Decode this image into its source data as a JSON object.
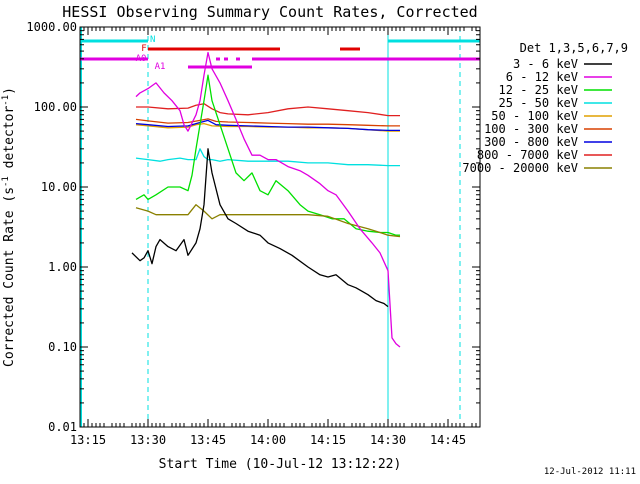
{
  "chart_data": {
    "type": "line",
    "title": "HESSI Observing Summary Count Rates, Corrected",
    "xlabel": "Start Time (10-Jul-12 13:12:22)",
    "ylabel": "Corrected Count Rate (s⁻¹ detector⁻¹)",
    "ylabel_main": "Corrected Count Rate (s",
    "ylabel_sup1": "-1",
    "ylabel_mid": " detector",
    "ylabel_sup2": "-1",
    "ylabel_end": ")",
    "yscale": "log",
    "ylim": [
      0.01,
      1000
    ],
    "xlim": [
      "13:12:22",
      "14:53:00"
    ],
    "xlim_min": [
      793,
      893
    ],
    "x_ticks": [
      "13:15",
      "13:30",
      "13:45",
      "14:00",
      "14:15",
      "14:30",
      "14:45"
    ],
    "x_tick_min": [
      795,
      810,
      825,
      840,
      855,
      870,
      885
    ],
    "y_ticks": [
      "0.01",
      "0.10",
      "1.00",
      "10.00",
      "100.00",
      "1000.00"
    ],
    "y_tick_vals": [
      0.01,
      0.1,
      1,
      10,
      100,
      1000
    ],
    "grid": false,
    "legend_position": "right",
    "legend_title": "Det 1,3,5,6,7,9",
    "footer_date": "12-Jul-2012 11:11",
    "flag_labels": [
      "N",
      "F",
      "A0",
      "A1"
    ],
    "series": [
      {
        "name": "3 - 6 keV",
        "color": "#000000",
        "x": [
          806,
          808,
          809,
          810,
          811,
          812,
          813,
          815,
          817,
          819,
          820,
          822,
          823,
          824,
          825,
          826,
          828,
          830,
          832,
          835,
          838,
          840,
          843,
          846,
          850,
          853,
          855,
          857,
          860,
          862,
          865,
          867,
          869,
          870
        ],
        "y": [
          1.5,
          1.2,
          1.3,
          1.6,
          1.1,
          1.8,
          2.2,
          1.8,
          1.6,
          2.2,
          1.4,
          2.0,
          3.0,
          6.0,
          30,
          15,
          6,
          4,
          3.5,
          2.8,
          2.5,
          2.0,
          1.7,
          1.4,
          1.0,
          0.8,
          0.75,
          0.8,
          0.6,
          0.55,
          0.45,
          0.38,
          0.35,
          0.32
        ]
      },
      {
        "name": "6 - 12 keV",
        "color": "#e000e0",
        "x": [
          807,
          808,
          810,
          812,
          814,
          816,
          818,
          819,
          820,
          822,
          823,
          824,
          825,
          826,
          828,
          830,
          832,
          834,
          836,
          838,
          840,
          842,
          845,
          848,
          850,
          853,
          855,
          857,
          860,
          863,
          866,
          868,
          870,
          871,
          872,
          873
        ],
        "y": [
          135,
          150,
          170,
          200,
          150,
          120,
          90,
          60,
          50,
          80,
          120,
          250,
          480,
          300,
          200,
          120,
          70,
          40,
          25,
          25,
          22,
          22,
          18,
          16,
          14,
          11,
          9,
          8,
          5,
          3,
          2,
          1.5,
          0.9,
          0.13,
          0.11,
          0.1
        ]
      },
      {
        "name": "12 - 25 keV",
        "color": "#00e000",
        "x": [
          807,
          809,
          810,
          812,
          815,
          818,
          820,
          821,
          822,
          823,
          824,
          825,
          826,
          828,
          830,
          832,
          834,
          836,
          838,
          840,
          842,
          845,
          848,
          850,
          853,
          856,
          859,
          862,
          865,
          868,
          870,
          872,
          873
        ],
        "y": [
          7,
          8,
          7,
          8,
          10,
          10,
          9,
          14,
          30,
          60,
          120,
          250,
          120,
          60,
          30,
          15,
          12,
          15,
          9,
          8,
          12,
          9,
          6,
          5,
          4.5,
          4,
          4,
          3,
          2.8,
          2.7,
          2.7,
          2.5,
          2.5
        ]
      },
      {
        "name": "25 - 50 keV",
        "color": "#00e0e0",
        "x": [
          807,
          810,
          813,
          815,
          818,
          820,
          822,
          823,
          824,
          825,
          826,
          828,
          830,
          835,
          840,
          845,
          850,
          855,
          860,
          865,
          870,
          873
        ],
        "y": [
          23,
          22,
          21,
          22,
          23,
          22,
          22,
          30,
          24,
          22,
          22,
          21,
          22,
          21,
          21,
          21,
          20,
          20,
          19,
          19,
          18.5,
          18.5
        ]
      },
      {
        "name": "50 - 100 keV",
        "color": "#e0a000",
        "x": [
          807,
          810,
          815,
          820,
          822,
          824,
          826,
          830,
          835,
          840,
          845,
          850,
          855,
          860,
          865,
          870,
          873
        ],
        "y": [
          60,
          58,
          55,
          56,
          60,
          62,
          58,
          57,
          57,
          56,
          56,
          55,
          55,
          54,
          52,
          50,
          50
        ]
      },
      {
        "name": "100 - 300 keV",
        "color": "#d84000",
        "x": [
          807,
          810,
          815,
          820,
          823,
          825,
          827,
          830,
          835,
          840,
          845,
          850,
          855,
          860,
          865,
          870,
          873
        ],
        "y": [
          70,
          67,
          63,
          64,
          68,
          71,
          66,
          65,
          64,
          63,
          62,
          61,
          61,
          60,
          59,
          58,
          58
        ]
      },
      {
        "name": "300 - 800 keV",
        "color": "#0000e0",
        "x": [
          807,
          810,
          815,
          820,
          823,
          825,
          827,
          830,
          835,
          840,
          845,
          850,
          855,
          860,
          865,
          870,
          873
        ],
        "y": [
          62,
          60,
          57,
          58,
          64,
          68,
          60,
          59,
          58,
          57,
          56,
          56,
          55,
          54,
          52,
          51,
          51
        ]
      },
      {
        "name": "800 - 7000 keV",
        "color": "#e02020",
        "x": [
          807,
          810,
          815,
          820,
          822,
          824,
          826,
          828,
          830,
          835,
          840,
          845,
          850,
          855,
          860,
          865,
          870,
          873
        ],
        "y": [
          100,
          100,
          95,
          97,
          105,
          110,
          95,
          85,
          82,
          80,
          85,
          95,
          100,
          95,
          90,
          85,
          78,
          78
        ]
      },
      {
        "name": "7000 - 20000 keV",
        "color": "#8a8000",
        "x": [
          807,
          810,
          812,
          815,
          818,
          820,
          822,
          824,
          826,
          828,
          830,
          835,
          840,
          845,
          850,
          855,
          860,
          865,
          868,
          870,
          873
        ],
        "y": [
          5.5,
          5,
          4.5,
          4.5,
          4.5,
          4.5,
          6,
          5,
          4,
          4.5,
          4.5,
          4.5,
          4.5,
          4.5,
          4.5,
          4.3,
          3.5,
          3,
          2.7,
          2.5,
          2.4
        ]
      }
    ],
    "flags": {
      "night_color": "#00e0e0",
      "flare_color": "#e00000",
      "attenuator_color": "#e000e0",
      "night": [
        [
          793,
          810
        ],
        [
          870,
          893
        ]
      ],
      "flare": [
        [
          810,
          843
        ],
        [
          858,
          863
        ]
      ],
      "a0": [
        [
          793,
          810
        ],
        [
          827,
          828
        ],
        [
          829,
          830
        ],
        [
          832,
          833
        ],
        [
          836,
          893
        ]
      ],
      "a1": [
        [
          820,
          836
        ]
      ],
      "saa_lines": [
        810,
        870,
        888
      ]
    }
  }
}
